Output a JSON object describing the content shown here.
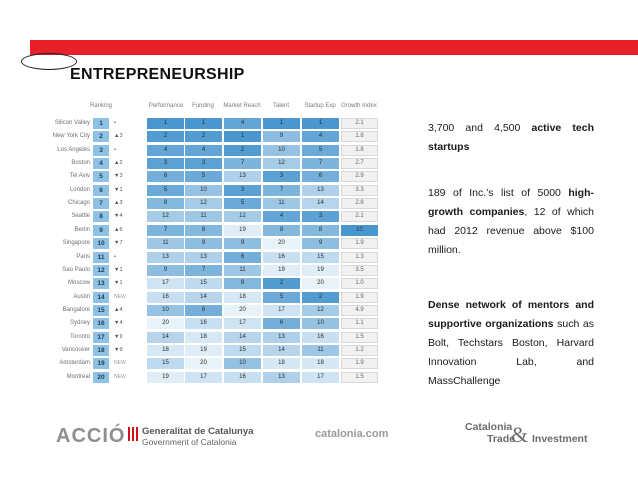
{
  "title": "ENTREPRENEURSHIP",
  "table": {
    "headers": [
      "Ranking",
      "Performance",
      "Funding",
      "Market Reach",
      "Talent",
      "Startup Exp",
      "Growth Index"
    ],
    "rows": [
      {
        "city": "Silicon Valley",
        "rank": "1",
        "change": "•",
        "perf": "1",
        "fund": "1",
        "market": "4",
        "talent": "1",
        "startup": "1",
        "growth": "2.1"
      },
      {
        "city": "New York City",
        "rank": "2",
        "change": "▲3",
        "perf": "2",
        "fund": "2",
        "market": "1",
        "talent": "9",
        "startup": "4",
        "growth": "1.8"
      },
      {
        "city": "Los Angeles",
        "rank": "3",
        "change": "•",
        "perf": "4",
        "fund": "4",
        "market": "2",
        "talent": "10",
        "startup": "5",
        "growth": "1.8"
      },
      {
        "city": "Boston",
        "rank": "4",
        "change": "▲2",
        "perf": "3",
        "fund": "3",
        "market": "7",
        "talent": "12",
        "startup": "7",
        "growth": "2.7"
      },
      {
        "city": "Tel Aviv",
        "rank": "5",
        "change": "▼3",
        "perf": "6",
        "fund": "5",
        "market": "13",
        "talent": "3",
        "startup": "6",
        "growth": "2.9"
      },
      {
        "city": "London",
        "rank": "6",
        "change": "▼1",
        "perf": "5",
        "fund": "10",
        "market": "3",
        "talent": "7",
        "startup": "13",
        "growth": "3.3"
      },
      {
        "city": "Chicago",
        "rank": "7",
        "change": "▲3",
        "perf": "8",
        "fund": "12",
        "market": "5",
        "talent": "11",
        "startup": "14",
        "growth": "2.8"
      },
      {
        "city": "Seattle",
        "rank": "8",
        "change": "▼4",
        "perf": "12",
        "fund": "11",
        "market": "12",
        "talent": "4",
        "startup": "3",
        "growth": "2.1"
      },
      {
        "city": "Berlin",
        "rank": "9",
        "change": "▲6",
        "perf": "7",
        "fund": "8",
        "market": "19",
        "talent": "8",
        "startup": "8",
        "growth": "10"
      },
      {
        "city": "Singapore",
        "rank": "10",
        "change": "▼7",
        "perf": "11",
        "fund": "9",
        "market": "9",
        "talent": "20",
        "startup": "9",
        "growth": "1.9"
      },
      {
        "city": "Paris",
        "rank": "11",
        "change": "•",
        "perf": "13",
        "fund": "13",
        "market": "6",
        "talent": "16",
        "startup": "15",
        "growth": "1.3"
      },
      {
        "city": "Sao Paulo",
        "rank": "12",
        "change": "▼1",
        "perf": "9",
        "fund": "7",
        "market": "11",
        "talent": "19",
        "startup": "19",
        "growth": "3.5"
      },
      {
        "city": "Moscow",
        "rank": "13",
        "change": "▼1",
        "perf": "17",
        "fund": "15",
        "market": "8",
        "talent": "2",
        "startup": "20",
        "growth": "1.0"
      },
      {
        "city": "Austin",
        "rank": "14",
        "change": "NEW",
        "perf": "16",
        "fund": "14",
        "market": "18",
        "talent": "5",
        "startup": "2",
        "growth": "1.9"
      },
      {
        "city": "Bangalore",
        "rank": "15",
        "change": "▲4",
        "perf": "10",
        "fund": "6",
        "market": "20",
        "talent": "17",
        "startup": "12",
        "growth": "4.9"
      },
      {
        "city": "Sydney",
        "rank": "16",
        "change": "▼4",
        "perf": "20",
        "fund": "16",
        "market": "17",
        "talent": "6",
        "startup": "10",
        "growth": "1.1"
      },
      {
        "city": "Toronto",
        "rank": "17",
        "change": "▼9",
        "perf": "14",
        "fund": "18",
        "market": "14",
        "talent": "13",
        "startup": "16",
        "growth": "1.5"
      },
      {
        "city": "Vancouver",
        "rank": "18",
        "change": "▼9",
        "perf": "18",
        "fund": "19",
        "market": "15",
        "talent": "14",
        "startup": "11",
        "growth": "1.2"
      },
      {
        "city": "Amsterdam",
        "rank": "19",
        "change": "NEW",
        "perf": "15",
        "fund": "20",
        "market": "10",
        "talent": "18",
        "startup": "18",
        "growth": "1.9"
      },
      {
        "city": "Montreal",
        "rank": "20",
        "change": "NEW",
        "perf": "19",
        "fund": "17",
        "market": "16",
        "talent": "13",
        "startup": "17",
        "growth": "1.5"
      }
    ]
  },
  "points": {
    "p1_a": "3,700 and 4,500 ",
    "p1_b": "active tech startups",
    "p2_a": "189 of Inc.’s list of 5000 ",
    "p2_b": "high-growth companies",
    "p2_c": ", 12 of which had 2012 revenue above $100 million.",
    "p3_b": "Dense network of mentors and supportive organizations",
    "p3_c": " such as Bolt, Techstars Boston, Harvard Innovation Lab, and MassChallenge"
  },
  "footer": {
    "accio": "ACCIÓ",
    "gencat_line1": "Generalitat de Catalunya",
    "gencat_line2": "Government of Catalonia",
    "site": "catalonia.com",
    "ct_line1": "Catalonia",
    "ct_line2_a": "Trade",
    "ct_amp": "&",
    "ct_line2_b": "Investment"
  },
  "colors": {
    "red_bar": "#e8202a",
    "rank_blue": "#8ec1e3",
    "cell_scale_dark": "#4a97cf",
    "cell_scale_light": "#e8f2f9"
  }
}
